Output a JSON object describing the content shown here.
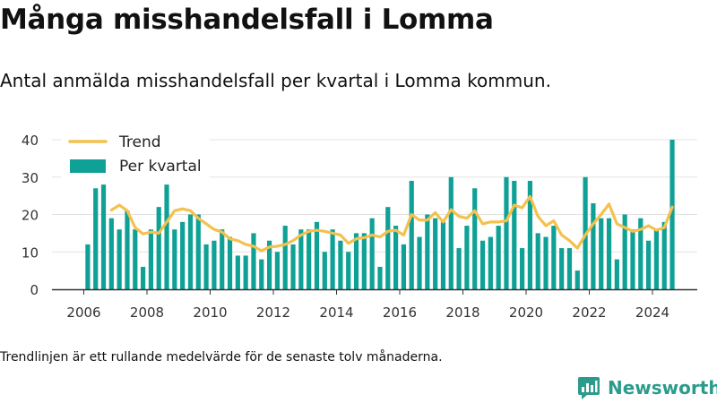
{
  "header": {
    "title": "Många misshandelsfall i Lomma",
    "subtitle": "Antal anmälda misshandelsfall per kvartal i Lomma kommun."
  },
  "footer": {
    "note": "Trendlinjen är ett rullande medelvärde för de senaste tolv månaderna.",
    "brand": "Newsworthy"
  },
  "colors": {
    "bar": "#0fa196",
    "trend": "#f4c14e",
    "grid": "#e3e3e3",
    "axis": "#333333",
    "brand": "#2b9c8c"
  },
  "chart_data": {
    "type": "bar",
    "x_start": 2006,
    "xticks": [
      2006,
      2008,
      2010,
      2012,
      2014,
      2016,
      2018,
      2020,
      2022,
      2024
    ],
    "xtick_labels": [
      "2006",
      "2008",
      "2010",
      "2012",
      "2014",
      "2016",
      "2018",
      "2020",
      "2022",
      "2024"
    ],
    "yticks": [
      0,
      10,
      20,
      30,
      40
    ],
    "ytick_labels": [
      "0",
      "10",
      "20",
      "30",
      "40"
    ],
    "ylim": [
      0,
      40
    ],
    "grid": true,
    "legend_position": "top-left",
    "series": [
      {
        "name": "Per kvartal",
        "kind": "bar",
        "values": [
          12,
          27,
          28,
          19,
          16,
          21,
          16,
          6,
          16,
          22,
          28,
          16,
          18,
          20,
          20,
          12,
          13,
          16,
          14,
          9,
          9,
          15,
          8,
          13,
          10,
          17,
          12,
          16,
          16,
          18,
          10,
          16,
          13,
          10,
          15,
          15,
          19,
          6,
          22,
          17,
          12,
          29,
          14,
          20,
          19,
          18,
          30,
          11,
          17,
          27,
          13,
          14,
          17,
          30,
          29,
          11,
          29,
          15,
          14,
          17,
          11,
          11,
          5,
          30,
          23,
          19,
          19,
          8,
          20,
          16,
          19,
          13,
          16,
          18,
          40
        ]
      },
      {
        "name": "Trend",
        "kind": "line",
        "start_index": 3,
        "values": [
          21.2,
          22.5,
          21,
          16.5,
          14.8,
          15.3,
          15,
          18,
          21,
          21.5,
          21,
          19,
          17.5,
          16,
          15.3,
          13.5,
          13,
          12,
          11.5,
          10.3,
          11.3,
          11.5,
          12,
          13,
          14.5,
          15.5,
          15.8,
          15.5,
          15,
          14.5,
          12.3,
          13.5,
          13.8,
          14.5,
          14,
          15.5,
          15.8,
          14.5,
          20,
          18.5,
          18.5,
          20.5,
          18,
          21.3,
          19.5,
          19,
          21,
          17.5,
          18,
          18,
          18.3,
          22.5,
          21.8,
          24.8,
          19.5,
          17,
          18.3,
          14.5,
          13,
          11,
          14.5,
          17.5,
          20,
          22.8,
          17.5,
          16.5,
          15.5,
          16,
          17,
          15.8,
          16.5,
          22
        ]
      }
    ]
  }
}
